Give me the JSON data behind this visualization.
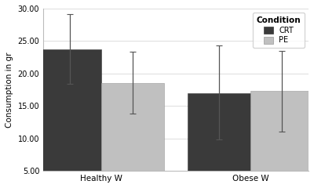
{
  "groups": [
    "Healthy W",
    "Obese W"
  ],
  "conditions": [
    "CRT",
    "PE"
  ],
  "values": {
    "Healthy W": {
      "CRT": 23.7,
      "PE": 18.5
    },
    "Obese W": {
      "CRT": 17.0,
      "PE": 17.3
    }
  },
  "errors": {
    "Healthy W": {
      "CRT": [
        5.3,
        5.5
      ],
      "PE": [
        4.7,
        4.8
      ]
    },
    "Obese W": {
      "CRT": [
        7.2,
        7.3
      ],
      "PE": [
        6.3,
        6.2
      ]
    }
  },
  "bar_colors": {
    "CRT": "#3a3a3a",
    "PE": "#c0c0c0"
  },
  "bar_edge_colors": {
    "CRT": "#3a3a3a",
    "PE": "#999999"
  },
  "ylim": [
    5.0,
    30.0
  ],
  "yticks": [
    5.0,
    10.0,
    15.0,
    20.0,
    25.0,
    30.0
  ],
  "ylabel": "Consumption in gr",
  "legend_title": "Condition",
  "fig_background": "#ffffff",
  "plot_background": "#ffffff",
  "bar_width": 0.38,
  "group_positions": [
    0.3,
    1.2
  ],
  "capsize": 3,
  "error_color": "#555555"
}
